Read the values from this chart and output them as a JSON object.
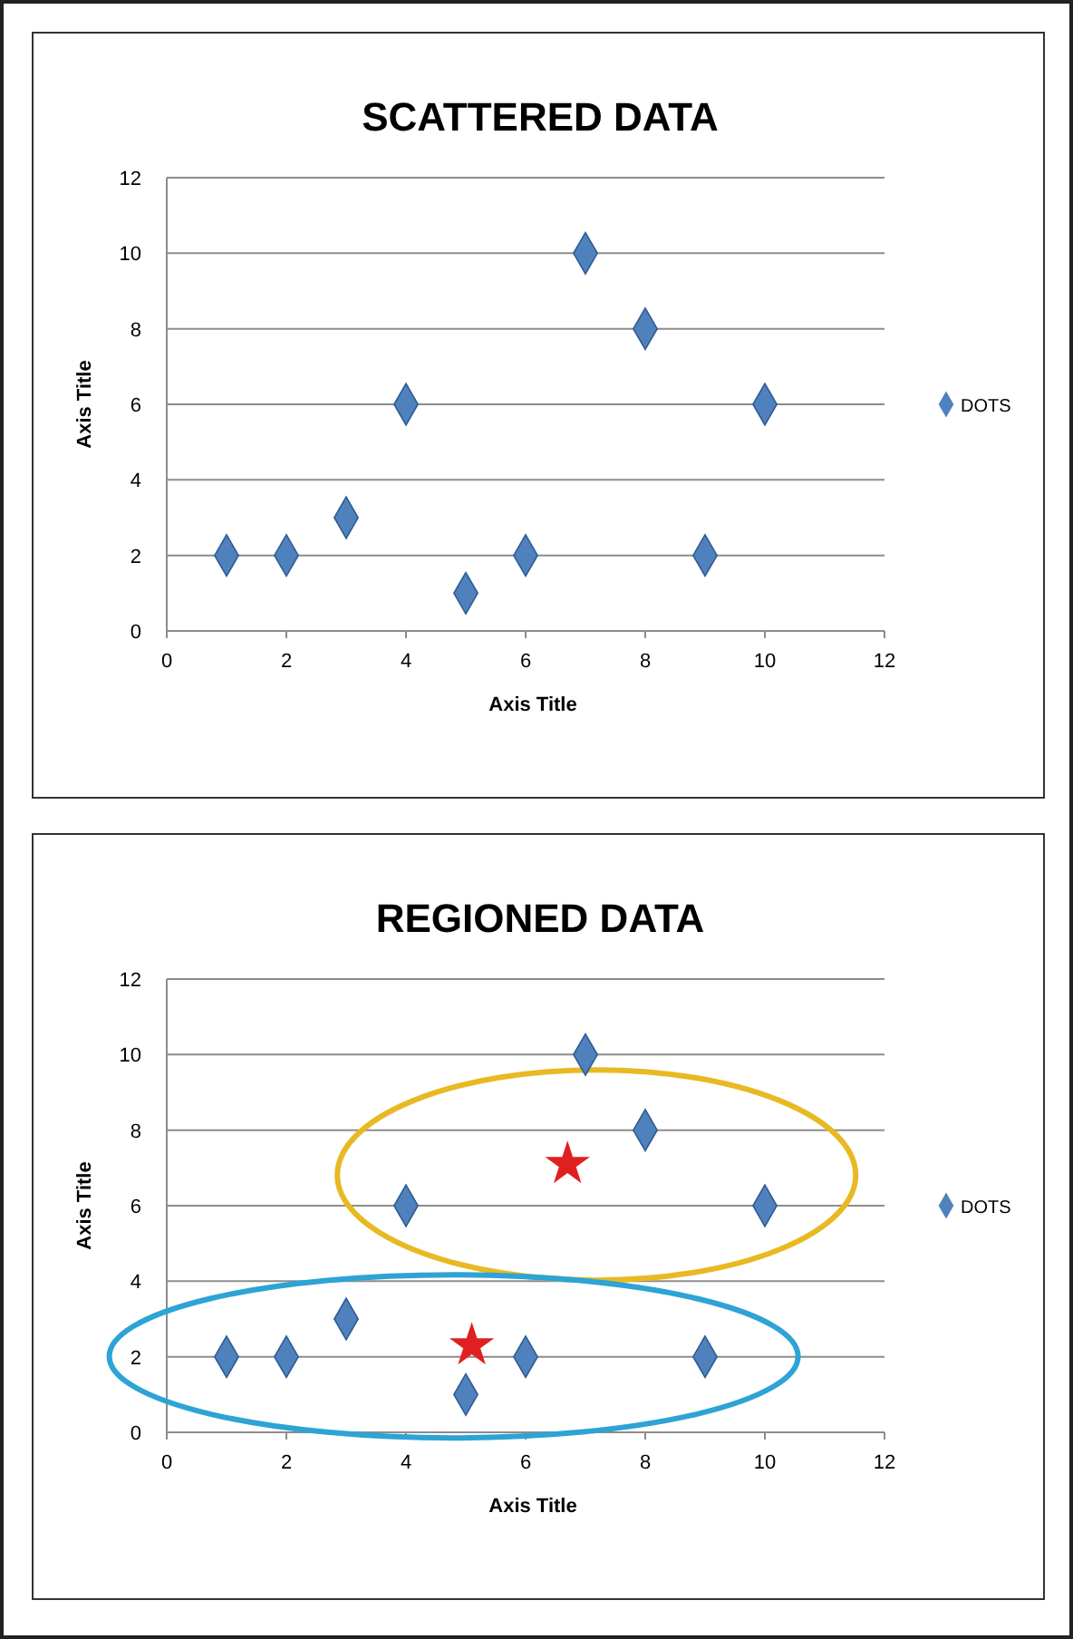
{
  "chart_data": [
    {
      "type": "scatter",
      "title": "SCATTERED DATA",
      "xlabel": "Axis Title",
      "ylabel": "Axis Title",
      "xlim": [
        0,
        12
      ],
      "xticks": [
        0,
        2,
        4,
        6,
        8,
        10,
        12
      ],
      "ylim": [
        0,
        12
      ],
      "yticks": [
        0,
        2,
        4,
        6,
        8,
        10,
        12
      ],
      "grid": "y",
      "legend": "right",
      "marker": "diamond",
      "series": [
        {
          "name": "DOTS",
          "color": "#4f81bd",
          "x": [
            1,
            2,
            3,
            4,
            5,
            6,
            7,
            8,
            9,
            10
          ],
          "values": [
            2,
            2,
            3,
            6,
            1,
            2,
            10,
            8,
            2,
            6
          ]
        }
      ]
    },
    {
      "type": "scatter",
      "title": "REGIONED DATA",
      "xlabel": "Axis Title",
      "ylabel": "Axis Title",
      "xlim": [
        0,
        12
      ],
      "xticks": [
        0,
        2,
        4,
        6,
        8,
        10,
        12
      ],
      "ylim": [
        0,
        12
      ],
      "yticks": [
        0,
        2,
        4,
        6,
        8,
        10,
        12
      ],
      "grid": "y",
      "legend": "right",
      "marker": "diamond",
      "series": [
        {
          "name": "DOTS",
          "color": "#4f81bd",
          "x": [
            1,
            2,
            3,
            4,
            5,
            6,
            7,
            8,
            9,
            10
          ],
          "values": [
            2,
            2,
            3,
            6,
            1,
            2,
            10,
            8,
            2,
            6
          ]
        },
        {
          "color": "#e02020",
          "marker": "star",
          "x": [
            6.7,
            5.1
          ],
          "values": [
            7.1,
            2.3
          ]
        }
      ]
    }
  ]
}
